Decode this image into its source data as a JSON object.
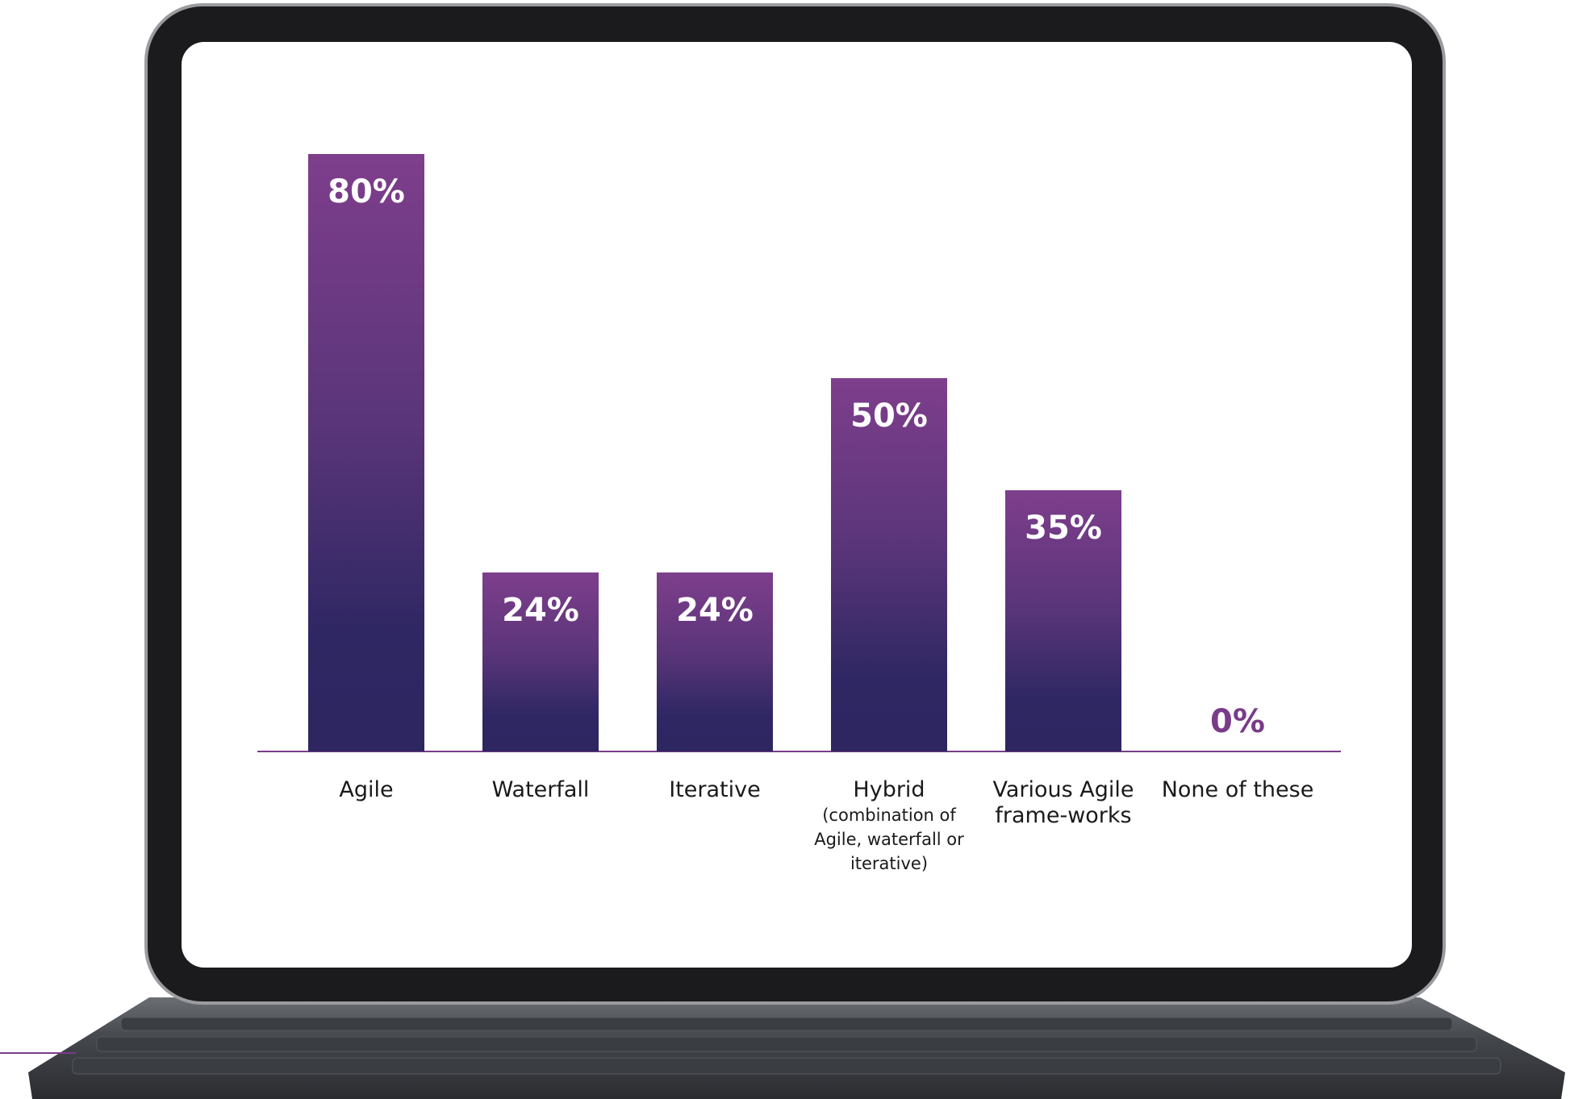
{
  "chart_data": {
    "type": "bar",
    "categories": [
      "Agile",
      "Waterfall",
      "Iterative",
      "Hybrid",
      "Various Agile frame-works",
      "None of these"
    ],
    "category_details": [
      null,
      null,
      null,
      "(combination of Agile, waterfall or iterative)",
      null,
      null
    ],
    "values": [
      80,
      24,
      24,
      50,
      35,
      0
    ],
    "value_labels": [
      "80%",
      "24%",
      "24%",
      "50%",
      "35%",
      "0%"
    ],
    "ylim": [
      0,
      80
    ],
    "color": "#5a3579",
    "axis_color": "#7a3b8a"
  }
}
